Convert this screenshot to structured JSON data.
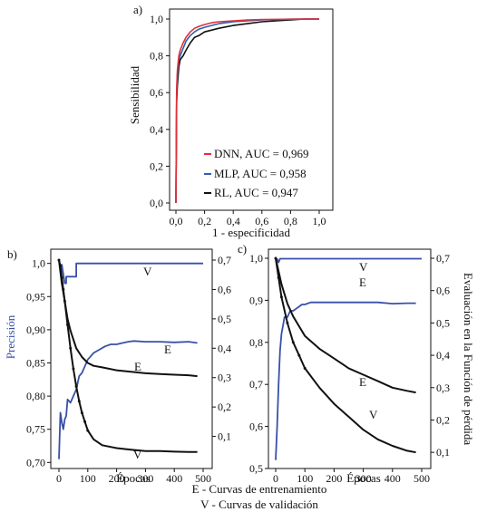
{
  "chart_data": [
    {
      "panel": "a)",
      "type": "line",
      "xlabel": "1 - especificidad",
      "ylabel": "Sensibilidad",
      "xlim": [
        0,
        1
      ],
      "ylim": [
        0,
        1
      ],
      "x_ticks": [
        "0,0",
        "0,2",
        "0,4",
        "0,6",
        "0,8",
        "1,0"
      ],
      "y_ticks": [
        "0,0",
        "0,2",
        "0,4",
        "0,6",
        "0,8",
        "1,0"
      ],
      "legend_position": "bottom-right",
      "series": [
        {
          "name": "DNN, AUC = 0,969",
          "color": "#e0303a",
          "x": [
            0,
            0.005,
            0.01,
            0.02,
            0.03,
            0.05,
            0.07,
            0.1,
            0.13,
            0.16,
            0.2,
            0.25,
            0.3,
            0.4,
            0.5,
            0.6,
            0.7,
            0.8,
            0.9,
            1.0
          ],
          "y": [
            0,
            0.62,
            0.72,
            0.8,
            0.83,
            0.87,
            0.9,
            0.93,
            0.95,
            0.96,
            0.97,
            0.98,
            0.985,
            0.99,
            0.995,
            0.997,
            0.998,
            0.999,
            1.0,
            1.0
          ]
        },
        {
          "name": "MLP, AUC = 0,958",
          "color": "#2f5fb0",
          "x": [
            0,
            0.005,
            0.01,
            0.02,
            0.03,
            0.05,
            0.07,
            0.1,
            0.13,
            0.16,
            0.2,
            0.25,
            0.3,
            0.4,
            0.5,
            0.6,
            0.7,
            0.8,
            0.9,
            1.0
          ],
          "y": [
            0,
            0.6,
            0.7,
            0.78,
            0.8,
            0.84,
            0.88,
            0.91,
            0.93,
            0.945,
            0.955,
            0.965,
            0.975,
            0.985,
            0.99,
            0.995,
            0.997,
            0.999,
            1.0,
            1.0
          ]
        },
        {
          "name": "RL, AUC = 0,947",
          "color": "#111111",
          "x": [
            0,
            0.005,
            0.01,
            0.02,
            0.03,
            0.05,
            0.07,
            0.1,
            0.13,
            0.16,
            0.2,
            0.25,
            0.3,
            0.4,
            0.5,
            0.6,
            0.7,
            0.8,
            0.9,
            1.0
          ],
          "y": [
            0,
            0.55,
            0.64,
            0.74,
            0.78,
            0.8,
            0.83,
            0.87,
            0.9,
            0.91,
            0.93,
            0.94,
            0.95,
            0.965,
            0.975,
            0.985,
            0.99,
            0.995,
            1.0,
            1.0
          ]
        }
      ]
    },
    {
      "panel": "b)",
      "type": "line",
      "xlabel": "Épocas",
      "ylabel_left": "Precisión",
      "xlim": [
        0,
        500
      ],
      "ylim_left": [
        0.695,
        1.005
      ],
      "ylim_right": [
        0,
        0.7
      ],
      "x_ticks": [
        "0",
        "100",
        "200",
        "300",
        "400",
        "500"
      ],
      "y_ticks_left": [
        "0,70",
        "0,75",
        "0,80",
        "0,85",
        "0,90",
        "0,95",
        "1,0"
      ],
      "y_ticks_right": [
        "0,1",
        "0,2",
        "0,3",
        "0,4",
        "0,5",
        "0,6",
        "0,7"
      ],
      "series": [
        {
          "name": "precision_train",
          "label": "E",
          "axis": "left",
          "color": "#3950a8",
          "x": [
            0,
            5,
            10,
            15,
            20,
            25,
            30,
            40,
            50,
            60,
            70,
            80,
            90,
            100,
            110,
            120,
            140,
            160,
            180,
            200,
            220,
            240,
            260,
            300,
            350,
            400,
            450,
            480
          ],
          "y": [
            0.705,
            0.775,
            0.76,
            0.75,
            0.765,
            0.77,
            0.795,
            0.79,
            0.8,
            0.81,
            0.83,
            0.835,
            0.845,
            0.855,
            0.86,
            0.865,
            0.87,
            0.875,
            0.878,
            0.878,
            0.88,
            0.882,
            0.883,
            0.882,
            0.882,
            0.881,
            0.882,
            0.88
          ]
        },
        {
          "name": "precision_val",
          "label": "V",
          "axis": "left",
          "color": "#3950a8",
          "x": [
            0,
            10,
            20,
            25,
            25,
            50,
            60,
            60,
            500
          ],
          "y": [
            0.998,
            0.998,
            0.97,
            0.97,
            0.98,
            0.98,
            0.98,
            1.0,
            1.0
          ]
        },
        {
          "name": "loss_train",
          "label": "E",
          "axis": "right",
          "color": "#111111",
          "x": [
            0,
            5,
            10,
            20,
            30,
            40,
            50,
            60,
            80,
            100,
            120,
            150,
            200,
            250,
            300,
            350,
            400,
            450,
            480
          ],
          "y": [
            0.7,
            0.66,
            0.62,
            0.56,
            0.5,
            0.46,
            0.43,
            0.4,
            0.37,
            0.35,
            0.34,
            0.335,
            0.325,
            0.32,
            0.315,
            0.312,
            0.31,
            0.308,
            0.305
          ]
        },
        {
          "name": "loss_val",
          "label": "V",
          "axis": "right",
          "color": "#111111",
          "x": [
            0,
            5,
            10,
            15,
            20,
            30,
            40,
            50,
            60,
            70,
            80,
            90,
            100,
            120,
            150,
            200,
            250,
            300,
            350,
            400,
            450,
            480
          ],
          "y": [
            0.7,
            0.68,
            0.64,
            0.6,
            0.56,
            0.48,
            0.4,
            0.33,
            0.27,
            0.22,
            0.18,
            0.15,
            0.12,
            0.09,
            0.07,
            0.06,
            0.055,
            0.05,
            0.05,
            0.048,
            0.047,
            0.047
          ]
        }
      ]
    },
    {
      "panel": "c)",
      "type": "line",
      "xlabel": "Épocas",
      "ylabel_right": "Evaluación en la Función de pérdida",
      "xlim": [
        0,
        500
      ],
      "ylim_left": [
        0.5,
        1.0
      ],
      "ylim_right": [
        0.05,
        0.7
      ],
      "x_ticks": [
        "0",
        "100",
        "200",
        "300",
        "400",
        "500"
      ],
      "y_ticks_left": [
        "0,5",
        "0,6",
        "0,7",
        "0,8",
        "0,9",
        "1,0"
      ],
      "y_ticks_right": [
        "0,1",
        "0,2",
        "0,3",
        "0,4",
        "0,5",
        "0,6",
        "0,7"
      ],
      "series": [
        {
          "name": "precision_train",
          "label": "E",
          "axis": "left",
          "color": "#3950a8",
          "x": [
            0,
            5,
            10,
            15,
            20,
            25,
            30,
            40,
            50,
            60,
            70,
            80,
            90,
            100,
            120,
            150,
            200,
            250,
            300,
            350,
            400,
            450,
            480
          ],
          "y": [
            0.52,
            0.6,
            0.7,
            0.78,
            0.82,
            0.84,
            0.86,
            0.86,
            0.875,
            0.875,
            0.88,
            0.885,
            0.89,
            0.89,
            0.895,
            0.895,
            0.895,
            0.895,
            0.895,
            0.895,
            0.892,
            0.893,
            0.893
          ]
        },
        {
          "name": "precision_val",
          "label": "V",
          "axis": "left",
          "color": "#3950a8",
          "x": [
            0,
            5,
            10,
            15,
            500
          ],
          "y": [
            0.998,
            0.998,
            0.99,
            0.999,
            0.999
          ]
        },
        {
          "name": "loss_train",
          "label": "E",
          "axis": "right",
          "color": "#111111",
          "x": [
            0,
            10,
            20,
            40,
            60,
            80,
            100,
            150,
            200,
            250,
            300,
            350,
            400,
            450,
            480
          ],
          "y": [
            0.7,
            0.66,
            0.62,
            0.56,
            0.52,
            0.49,
            0.46,
            0.42,
            0.39,
            0.36,
            0.34,
            0.32,
            0.3,
            0.29,
            0.285
          ]
        },
        {
          "name": "loss_val",
          "label": "V",
          "axis": "right",
          "color": "#111111",
          "x": [
            0,
            10,
            20,
            40,
            60,
            80,
            100,
            150,
            200,
            250,
            300,
            350,
            400,
            450,
            480
          ],
          "y": [
            0.7,
            0.64,
            0.58,
            0.5,
            0.44,
            0.4,
            0.36,
            0.3,
            0.25,
            0.21,
            0.17,
            0.14,
            0.12,
            0.105,
            0.1
          ]
        }
      ]
    }
  ],
  "panel_labels": {
    "a": "a)",
    "b": "b)",
    "c": "c)"
  },
  "legend": [
    {
      "label": "DNN, AUC = 0,969",
      "color": "#e0303a"
    },
    {
      "label": "MLP, AUC = 0,958",
      "color": "#2f5fb0"
    },
    {
      "label": "RL, AUC = 0,947",
      "color": "#111111"
    }
  ],
  "curve_labels": {
    "E": "E",
    "V": "V"
  },
  "footnotes": {
    "train": "E - Curvas de entrenamiento",
    "val": "V - Curvas de validación"
  }
}
